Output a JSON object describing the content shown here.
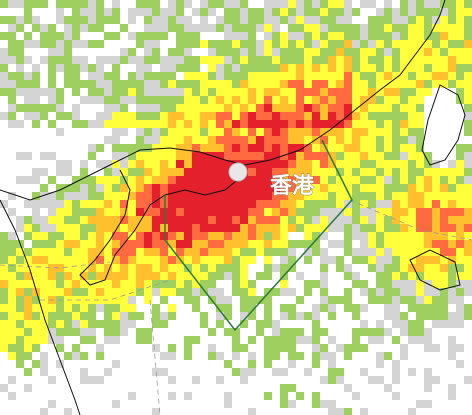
{
  "map": {
    "label": "香港"
  }
}
